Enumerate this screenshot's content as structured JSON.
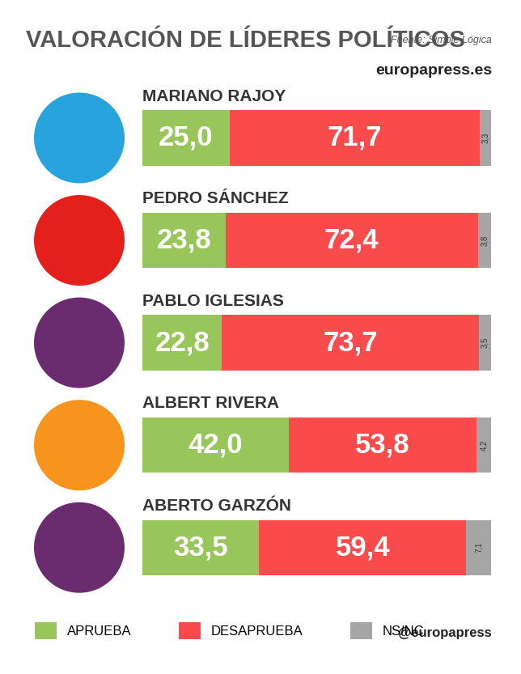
{
  "chart_data": {
    "type": "bar",
    "orientation": "horizontal",
    "stacked": true,
    "data_labels": true,
    "tick_labels": false,
    "grid": false,
    "legend": "lower left",
    "title": "VALORACIÓN DE LÍDERES POLÍTICOS",
    "annotations": [
      "Fuente: Simple Lógica",
      "europapress.es",
      "@europapress"
    ],
    "categories": [
      "MARIANO RAJOY",
      "PEDRO SÁNCHEZ",
      "PABLO IGLESIAS",
      "ALBERT RIVERA",
      "ABERTO GARZÓN"
    ],
    "xlim": [
      0,
      100
    ],
    "series": [
      {
        "name": "APRUEBA",
        "color": "#99c65a",
        "values": [
          25.0,
          23.8,
          22.8,
          42.0,
          33.5
        ],
        "value_labels": [
          "25,0",
          "23,8",
          "22,8",
          "42,0",
          "33,5"
        ]
      },
      {
        "name": "DESAPRUEBA",
        "color": "#f94a4c",
        "values": [
          71.7,
          72.4,
          73.7,
          53.8,
          59.4
        ],
        "value_labels": [
          "71,7",
          "72,4",
          "73,7",
          "53,8",
          "59,4"
        ]
      },
      {
        "name": "NS/NC",
        "color": "#a6a6a6",
        "values": [
          3.3,
          3.8,
          3.5,
          4.2,
          7.1
        ],
        "value_labels": [
          "3,3",
          "3,8",
          "3,5",
          "4,2",
          "7,1"
        ]
      }
    ]
  }
}
